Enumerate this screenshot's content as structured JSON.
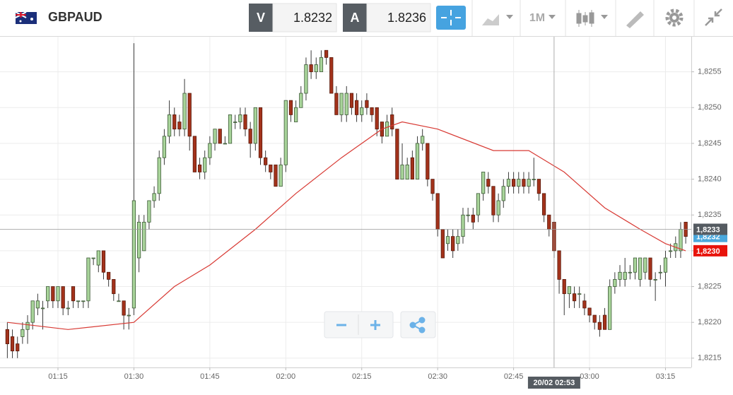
{
  "header": {
    "symbol": "GBPAUD",
    "bid_label": "V",
    "bid": "1.8232",
    "ask_label": "A",
    "ask": "1.8236",
    "timeframe": "1M"
  },
  "chart_data": {
    "type": "candlestick",
    "x": [
      65,
      66,
      67,
      68,
      69,
      70,
      71,
      72,
      73,
      74,
      75,
      76,
      77,
      78,
      79,
      80,
      81,
      82,
      83,
      84,
      85,
      86,
      87,
      88,
      89,
      90,
      91,
      92,
      93,
      94,
      95,
      96,
      97,
      98,
      99,
      100,
      101,
      102,
      103,
      104,
      105,
      106,
      107,
      108,
      109,
      110,
      111,
      112,
      113,
      114,
      115,
      116,
      117,
      118,
      119,
      120,
      121,
      122,
      123,
      124,
      125,
      126,
      127,
      128,
      129,
      130,
      131,
      132,
      133,
      134,
      135,
      136,
      137,
      138,
      139,
      140,
      141,
      142,
      143,
      144,
      145,
      146,
      147,
      148,
      149,
      150,
      151,
      152,
      153,
      154,
      155,
      156,
      157,
      158,
      159,
      160,
      161,
      162,
      163,
      164,
      165,
      166,
      167,
      168,
      169,
      170,
      171,
      172,
      173,
      174,
      175,
      176,
      177,
      178,
      179,
      180,
      181,
      182,
      183,
      184,
      185,
      186,
      187,
      188,
      189,
      190,
      191,
      192,
      193,
      194,
      195,
      196,
      197,
      198,
      199
    ],
    "open": [
      1.8219,
      1.8218,
      1.8217,
      1.8218,
      1.8219,
      1.822,
      1.8222,
      1.8222,
      1.8223,
      1.8225,
      1.8223,
      1.8225,
      1.8222,
      1.8225,
      1.8223,
      1.8223,
      1.8223,
      1.8229,
      1.8228,
      1.823,
      1.8227,
      1.8226,
      1.8223,
      1.8223,
      1.8221,
      1.8222,
      1.8229,
      1.823,
      1.8234,
      1.8237,
      1.8238,
      1.8243,
      1.8246,
      1.8249,
      1.8248,
      1.8247,
      1.8252,
      1.8246,
      1.8242,
      1.8241,
      1.8243,
      1.8245,
      1.8247,
      1.8245,
      1.8245,
      1.8248,
      1.8248,
      1.8249,
      1.8247,
      1.8245,
      1.825,
      1.8243,
      1.8242,
      1.8242,
      1.8239,
      1.8242,
      1.8251,
      1.8248,
      1.825,
      1.8252,
      1.8256,
      1.8255,
      1.8255,
      1.8258,
      1.8257,
      1.8252,
      1.8249,
      1.8249,
      1.8252,
      1.8251,
      1.8249,
      1.8251,
      1.825,
      1.825,
      1.8248,
      1.8246,
      1.8249,
      1.8247,
      1.824,
      1.824,
      1.8243,
      1.824,
      1.8245,
      1.8245,
      1.824,
      1.8238,
      1.8233,
      1.8231,
      1.8232,
      1.8231,
      1.8232,
      1.8235,
      1.8235,
      1.8235,
      1.8238,
      1.824,
      1.8239,
      1.8235,
      1.8237,
      1.8239,
      1.824,
      1.8239,
      1.824,
      1.8239,
      1.824,
      1.824,
      1.8238,
      1.8235,
      1.8234,
      1.823,
      1.8226,
      1.8224,
      1.8224,
      1.8224,
      1.8223,
      1.8222,
      1.8221,
      1.822,
      1.8221,
      1.8219,
      1.8225,
      1.8226,
      1.8226,
      1.8227,
      1.8227,
      1.8226,
      1.8227,
      1.8229,
      1.8226,
      1.8227,
      1.8227,
      1.823,
      1.823,
      1.823,
      1.8234
    ],
    "high": [
      1.822,
      1.8219,
      1.8218,
      1.822,
      1.8221,
      1.8223,
      1.8224,
      1.8223,
      1.8225,
      1.8225,
      1.8225,
      1.8225,
      1.8223,
      1.8225,
      1.8223,
      1.8223,
      1.8229,
      1.8229,
      1.823,
      1.823,
      1.8227,
      1.8226,
      1.8224,
      1.8223,
      1.8222,
      1.8259,
      1.8235,
      1.8235,
      1.8237,
      1.8239,
      1.8244,
      1.8247,
      1.8251,
      1.825,
      1.8249,
      1.8254,
      1.8252,
      1.8246,
      1.8243,
      1.8244,
      1.8246,
      1.8247,
      1.8247,
      1.8246,
      1.8249,
      1.8249,
      1.825,
      1.825,
      1.8248,
      1.825,
      1.825,
      1.8244,
      1.8242,
      1.8242,
      1.8243,
      1.8251,
      1.8251,
      1.8251,
      1.8253,
      1.8257,
      1.8258,
      1.8257,
      1.8258,
      1.8258,
      1.8257,
      1.8253,
      1.8252,
      1.8253,
      1.8252,
      1.8252,
      1.8251,
      1.8252,
      1.825,
      1.825,
      1.8248,
      1.8249,
      1.825,
      1.8247,
      1.8245,
      1.8243,
      1.8244,
      1.8246,
      1.8247,
      1.8245,
      1.824,
      1.8238,
      1.8233,
      1.8233,
      1.8233,
      1.8233,
      1.8236,
      1.8236,
      1.8236,
      1.8238,
      1.8241,
      1.8241,
      1.8239,
      1.8238,
      1.824,
      1.8241,
      1.8241,
      1.8241,
      1.8241,
      1.8241,
      1.8243,
      1.824,
      1.8238,
      1.8235,
      1.8234,
      1.823,
      1.8226,
      1.8225,
      1.8225,
      1.8225,
      1.8224,
      1.8222,
      1.8221,
      1.8221,
      1.8222,
      1.8226,
      1.8227,
      1.8228,
      1.8229,
      1.8228,
      1.8229,
      1.8229,
      1.8229,
      1.8229,
      1.8227,
      1.8228,
      1.823,
      1.8231,
      1.8232,
      1.8234,
      1.8234
    ],
    "low": [
      1.8215,
      1.8215,
      1.8215,
      1.8217,
      1.8217,
      1.8219,
      1.8221,
      1.8219,
      1.8222,
      1.8222,
      1.8222,
      1.8221,
      1.8221,
      1.8222,
      1.8222,
      1.8222,
      1.8222,
      1.8228,
      1.8227,
      1.8226,
      1.8225,
      1.8223,
      1.8223,
      1.8219,
      1.8219,
      1.8221,
      1.8227,
      1.823,
      1.8233,
      1.8236,
      1.8237,
      1.8242,
      1.8245,
      1.8246,
      1.8246,
      1.8246,
      1.8244,
      1.8241,
      1.824,
      1.824,
      1.8242,
      1.8244,
      1.8245,
      1.8245,
      1.8245,
      1.8247,
      1.8247,
      1.8246,
      1.8243,
      1.8244,
      1.8242,
      1.8241,
      1.824,
      1.8239,
      1.8239,
      1.8241,
      1.8248,
      1.8248,
      1.825,
      1.8251,
      1.8254,
      1.8254,
      1.8255,
      1.8256,
      1.8252,
      1.8249,
      1.8248,
      1.8248,
      1.8249,
      1.8248,
      1.8248,
      1.8249,
      1.8248,
      1.8246,
      1.8245,
      1.8246,
      1.8246,
      1.824,
      1.824,
      1.824,
      1.824,
      1.824,
      1.8244,
      1.8239,
      1.8237,
      1.8232,
      1.8229,
      1.823,
      1.8229,
      1.823,
      1.8231,
      1.8234,
      1.8233,
      1.8234,
      1.8237,
      1.8238,
      1.8234,
      1.8234,
      1.8236,
      1.8238,
      1.8238,
      1.8238,
      1.8238,
      1.8238,
      1.8239,
      1.8237,
      1.8234,
      1.8232,
      1.8229,
      1.8224,
      1.8221,
      1.8222,
      1.8222,
      1.8222,
      1.8221,
      1.822,
      1.8219,
      1.8218,
      1.8219,
      1.8219,
      1.8224,
      1.8225,
      1.8225,
      1.8226,
      1.8226,
      1.8225,
      1.8226,
      1.8225,
      1.8223,
      1.8226,
      1.8225,
      1.8229,
      1.8229,
      1.8229,
      1.8231
    ],
    "close": [
      1.8217,
      1.8216,
      1.8216,
      1.8219,
      1.822,
      1.8223,
      1.8223,
      1.8222,
      1.8225,
      1.8223,
      1.8225,
      1.8222,
      1.8222,
      1.8223,
      1.8223,
      1.8223,
      1.8229,
      1.8229,
      1.823,
      1.8227,
      1.8226,
      1.8224,
      1.8223,
      1.8221,
      1.8221,
      1.8237,
      1.8234,
      1.8234,
      1.8237,
      1.8238,
      1.8243,
      1.8246,
      1.8249,
      1.8247,
      1.8247,
      1.8252,
      1.8246,
      1.8241,
      1.8241,
      1.8243,
      1.8245,
      1.8247,
      1.8245,
      1.8245,
      1.8249,
      1.8248,
      1.8249,
      1.8247,
      1.8245,
      1.825,
      1.8243,
      1.8242,
      1.8241,
      1.8239,
      1.8242,
      1.8251,
      1.8249,
      1.825,
      1.8252,
      1.8256,
      1.8255,
      1.8256,
      1.8257,
      1.8257,
      1.8252,
      1.8249,
      1.8252,
      1.8252,
      1.825,
      1.8249,
      1.825,
      1.825,
      1.8249,
      1.8247,
      1.8246,
      1.8248,
      1.8247,
      1.824,
      1.8242,
      1.8242,
      1.824,
      1.8245,
      1.8246,
      1.824,
      1.8238,
      1.8233,
      1.8229,
      1.8232,
      1.823,
      1.8232,
      1.8235,
      1.8235,
      1.8234,
      1.8238,
      1.8241,
      1.8239,
      1.8235,
      1.8237,
      1.8239,
      1.824,
      1.8239,
      1.824,
      1.8239,
      1.824,
      1.824,
      1.8238,
      1.8235,
      1.8233,
      1.823,
      1.8226,
      1.8224,
      1.8225,
      1.8223,
      1.8224,
      1.8222,
      1.8221,
      1.822,
      1.8219,
      1.8219,
      1.8225,
      1.8226,
      1.8227,
      1.8227,
      1.8227,
      1.8229,
      1.8229,
      1.8229,
      1.8226,
      1.8226,
      1.8227,
      1.8229,
      1.823,
      1.8231,
      1.8233,
      1.8232
    ],
    "up_color": "#a8d49a",
    "down_color": "#a3321b",
    "moving_average": {
      "color": "#d83a34",
      "x": [
        65,
        77,
        90,
        98,
        105,
        114,
        122,
        131,
        139,
        143,
        150,
        161,
        168,
        175,
        183,
        190,
        195,
        199
      ],
      "values": [
        1.822,
        1.8219,
        1.822,
        1.8225,
        1.8228,
        1.8233,
        1.8238,
        1.8243,
        1.8247,
        1.8248,
        1.8247,
        1.8244,
        1.8244,
        1.8241,
        1.8236,
        1.8233,
        1.8231,
        1.823
      ]
    },
    "xlim": [
      63.55,
      200.1
    ],
    "ylim": [
      1.82137,
      1.82599
    ],
    "xticks": [
      {
        "value": 75,
        "label": "01:15"
      },
      {
        "value": 90,
        "label": "01:30"
      },
      {
        "value": 105,
        "label": "01:45"
      },
      {
        "value": 120,
        "label": "02:00"
      },
      {
        "value": 135,
        "label": "02:15"
      },
      {
        "value": 150,
        "label": "02:30"
      },
      {
        "value": 165,
        "label": "02:45"
      },
      {
        "value": 180,
        "label": "03:00"
      },
      {
        "value": 195,
        "label": "03:15"
      }
    ],
    "yticks": [
      {
        "value": 1.8215,
        "label": "1,8215"
      },
      {
        "value": 1.822,
        "label": "1,8220"
      },
      {
        "value": 1.8225,
        "label": "1,8225"
      },
      {
        "value": 1.823,
        "label": "1,8230"
      },
      {
        "value": 1.8235,
        "label": "1,8235"
      },
      {
        "value": 1.824,
        "label": "1,8240"
      },
      {
        "value": 1.8245,
        "label": "1,8245"
      },
      {
        "value": 1.825,
        "label": "1,8250"
      },
      {
        "value": 1.8255,
        "label": "1,8255"
      }
    ],
    "grid": true,
    "price_labels": [
      {
        "value": 1.8232,
        "label": "1,8232",
        "color": "#4aa8dd"
      },
      {
        "value": 1.823,
        "label": "1,8230",
        "color": "#e8140c"
      },
      {
        "value": 1.8233,
        "label": "1,8233",
        "color": "#555b61"
      }
    ],
    "crosshair": {
      "x": 173,
      "x_label": "20/02 02:53",
      "y": 1.8233
    }
  }
}
